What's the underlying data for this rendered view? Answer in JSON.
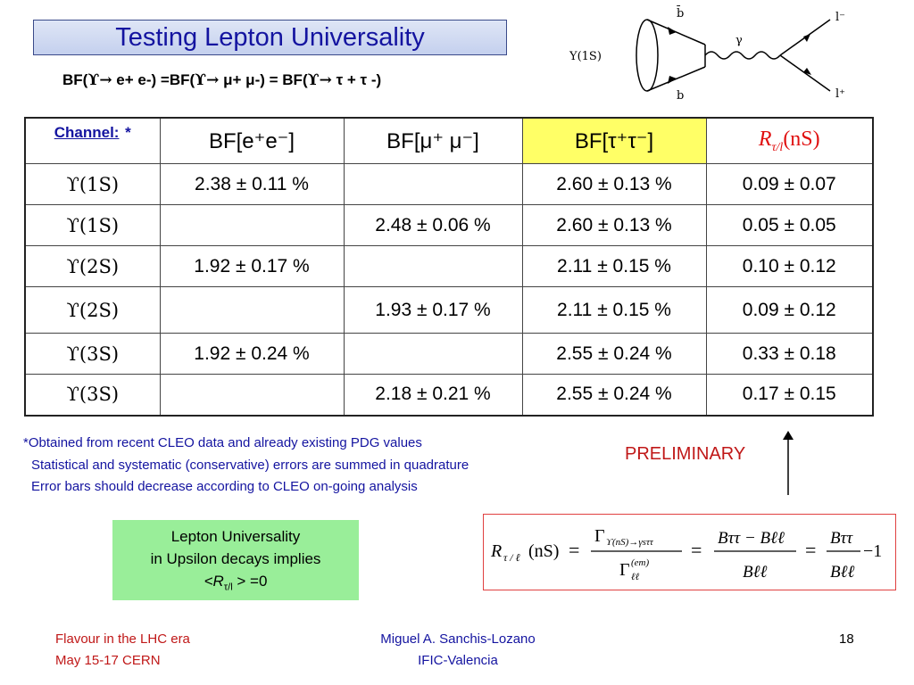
{
  "title": "Testing Lepton Universality",
  "equation": {
    "part1": "BF(",
    "ups1": "ϒ",
    "arrow1": "→",
    "part2": " e+ e-) ",
    "eq1": "=",
    "part3": "BF(",
    "ups2": "ϒ",
    "arrow2": "→",
    "part4": " μ+ μ-) = BF(",
    "ups3": "ϒ",
    "arrow3": "→",
    "part5": " τ + τ -)"
  },
  "diagram": {
    "particle": "Υ(1S)",
    "b_bar": "b̄",
    "b": "b",
    "gamma": "γ",
    "l_minus": "l⁻",
    "l_plus": "l⁺"
  },
  "table": {
    "headers": {
      "channel": "Channel:",
      "star": "*",
      "ee": "BF[e⁺e⁻]",
      "mumu": "BF[μ⁺ μ⁻]",
      "tautau": "BF[τ⁺τ⁻]",
      "ratio_main": "R",
      "ratio_sub": "τ/l",
      "ratio_tail": "(nS)"
    },
    "rows": [
      {
        "channel": "ϒ(1S)",
        "ee": "2.38 ± 0.11 %",
        "mumu": "",
        "tautau": "2.60 ± 0.13 %",
        "ratio": "0.09 ± 0.07"
      },
      {
        "channel": "ϒ(1S)",
        "ee": "",
        "mumu": "2.48 ± 0.06 %",
        "tautau": "2.60 ± 0.13 %",
        "ratio": "0.05 ± 0.05"
      },
      {
        "channel": "ϒ(2S)",
        "ee": "1.92 ± 0.17 %",
        "mumu": "",
        "tautau": "2.11 ± 0.15 %",
        "ratio": "0.10 ± 0.12"
      },
      {
        "channel": "ϒ(2S)",
        "ee": "",
        "mumu": "1.93 ± 0.17 %",
        "tautau": "2.11 ± 0.15 %",
        "ratio": "0.09 ± 0.12"
      },
      {
        "channel": "ϒ(3S)",
        "ee": "1.92 ± 0.24 %",
        "mumu": "",
        "tautau": "2.55 ± 0.24 %",
        "ratio": "0.33 ± 0.18"
      },
      {
        "channel": "ϒ(3S)",
        "ee": "",
        "mumu": "2.18 ± 0.21 %",
        "tautau": "2.55 ± 0.24 %",
        "ratio": "0.17 ± 0.15"
      }
    ]
  },
  "notes": {
    "line1": "*Obtained from recent CLEO data and already existing PDG values",
    "line2": "Statistical and systematic (conservative) errors are summed in quadrature",
    "line3": "Error bars should decrease according to CLEO on-going analysis",
    "preliminary": "PRELIMINARY"
  },
  "lepton_box": {
    "line1": "Lepton Universality",
    "line2": "in Upsilon decays implies",
    "line3_open": "<R",
    "line3_sub": "τ/l",
    "line3_close": " > =0"
  },
  "formula": {
    "lhs_R": "R",
    "lhs_sub": "τ / ℓ",
    "lhs_arg": "(nS)",
    "equals": "=",
    "gamma": "Γ",
    "num_sub": "ϒ(nS)→γsττ",
    "den_sup": "(em)",
    "den_sub": "ℓℓ",
    "mid_num": "Bττ − Bℓℓ",
    "mid_den": "Bℓℓ",
    "right_num": "Bττ",
    "right_den": "Bℓℓ",
    "minus_one": "−1"
  },
  "footer": {
    "left1": "Flavour in the LHC era",
    "left2": "May 15-17 CERN",
    "center1": "Miguel A. Sanchis-Lozano",
    "center2": "IFIC-Valencia",
    "page": "18"
  },
  "colors": {
    "title_blue": "#1414a0",
    "highlight_yellow": "#ffff66",
    "ratio_red": "#e01010",
    "box_green": "#99ee99",
    "footer_red": "#c01818"
  }
}
